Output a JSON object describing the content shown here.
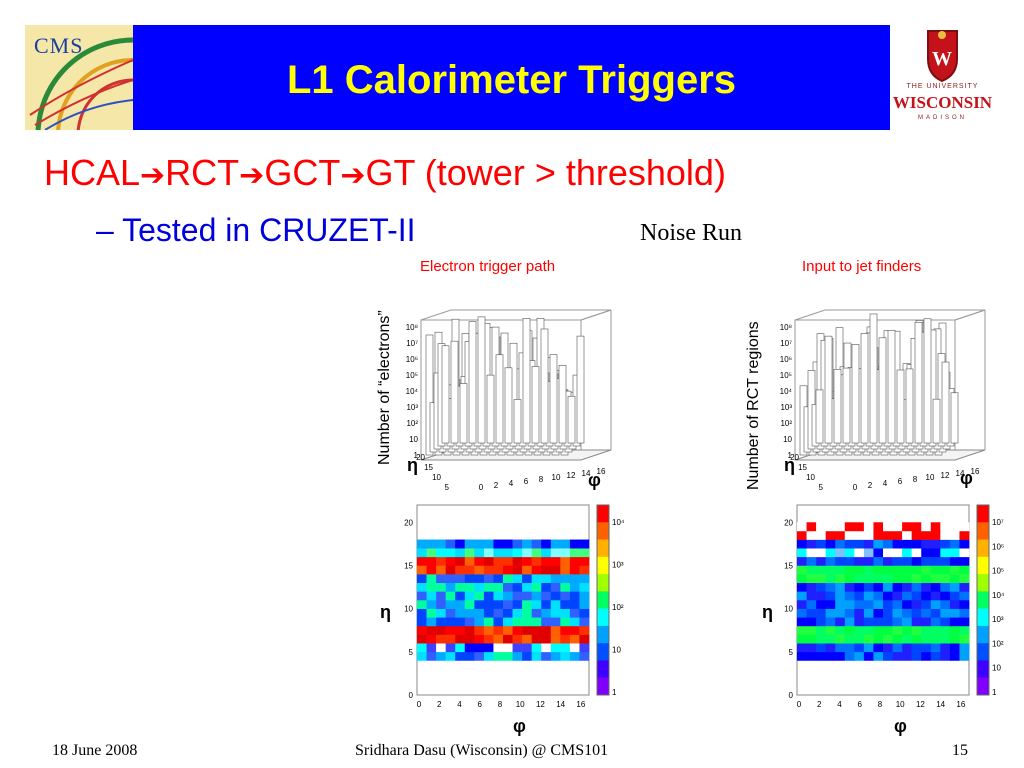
{
  "header": {
    "title": "L1 Calorimeter Triggers",
    "cms_logo_text": "CMS",
    "uw_logo": {
      "top": "THE UNIVERSITY",
      "main": "WISCONSIN",
      "sub": "MADISON"
    },
    "colors": {
      "banner": "#0000ff",
      "title": "#ffff00"
    }
  },
  "bullets": {
    "main": {
      "parts": [
        "HCAL",
        "RCT",
        "GCT",
        "GT (tower > threshold)"
      ],
      "arrow": "➔"
    },
    "sub": "– Tested in CRUZET-II"
  },
  "noise_label": "Noise Run",
  "plots": {
    "left": {
      "title": "Electron trigger path",
      "ylabel": "Number of “electrons”",
      "eta": "η",
      "phi": "φ",
      "lego_z_ticks": [
        "10⁸",
        "10⁷",
        "10⁶",
        "10⁵",
        "10⁴",
        "10³",
        "10²",
        "10",
        "1"
      ],
      "eta_ticks": [
        "0",
        "5",
        "10",
        "15",
        "20"
      ],
      "phi_ticks": [
        "0",
        "2",
        "4",
        "6",
        "8",
        "10",
        "12",
        "14",
        "16"
      ],
      "colorbar_ticks": [
        "10⁴",
        "10³",
        "10²",
        "10",
        "1"
      ]
    },
    "right": {
      "title": "Input to jet finders",
      "ylabel": "Number of RCT regions",
      "eta": "η",
      "phi": "φ",
      "lego_z_ticks": [
        "10⁸",
        "10⁷",
        "10⁶",
        "10⁵",
        "10⁴",
        "10³",
        "10²",
        "10",
        "1"
      ],
      "eta_ticks": [
        "0",
        "5",
        "10",
        "15",
        "20"
      ],
      "phi_ticks": [
        "0",
        "2",
        "4",
        "6",
        "8",
        "10",
        "12",
        "14",
        "16"
      ],
      "colorbar_ticks": [
        "10⁷",
        "10⁶",
        "10⁵",
        "10⁴",
        "10³",
        "10²",
        "10",
        "1"
      ]
    }
  },
  "footer": {
    "date": "18 June 2008",
    "author": "Sridhara Dasu (Wisconsin) @ CMS101",
    "page": "15"
  }
}
